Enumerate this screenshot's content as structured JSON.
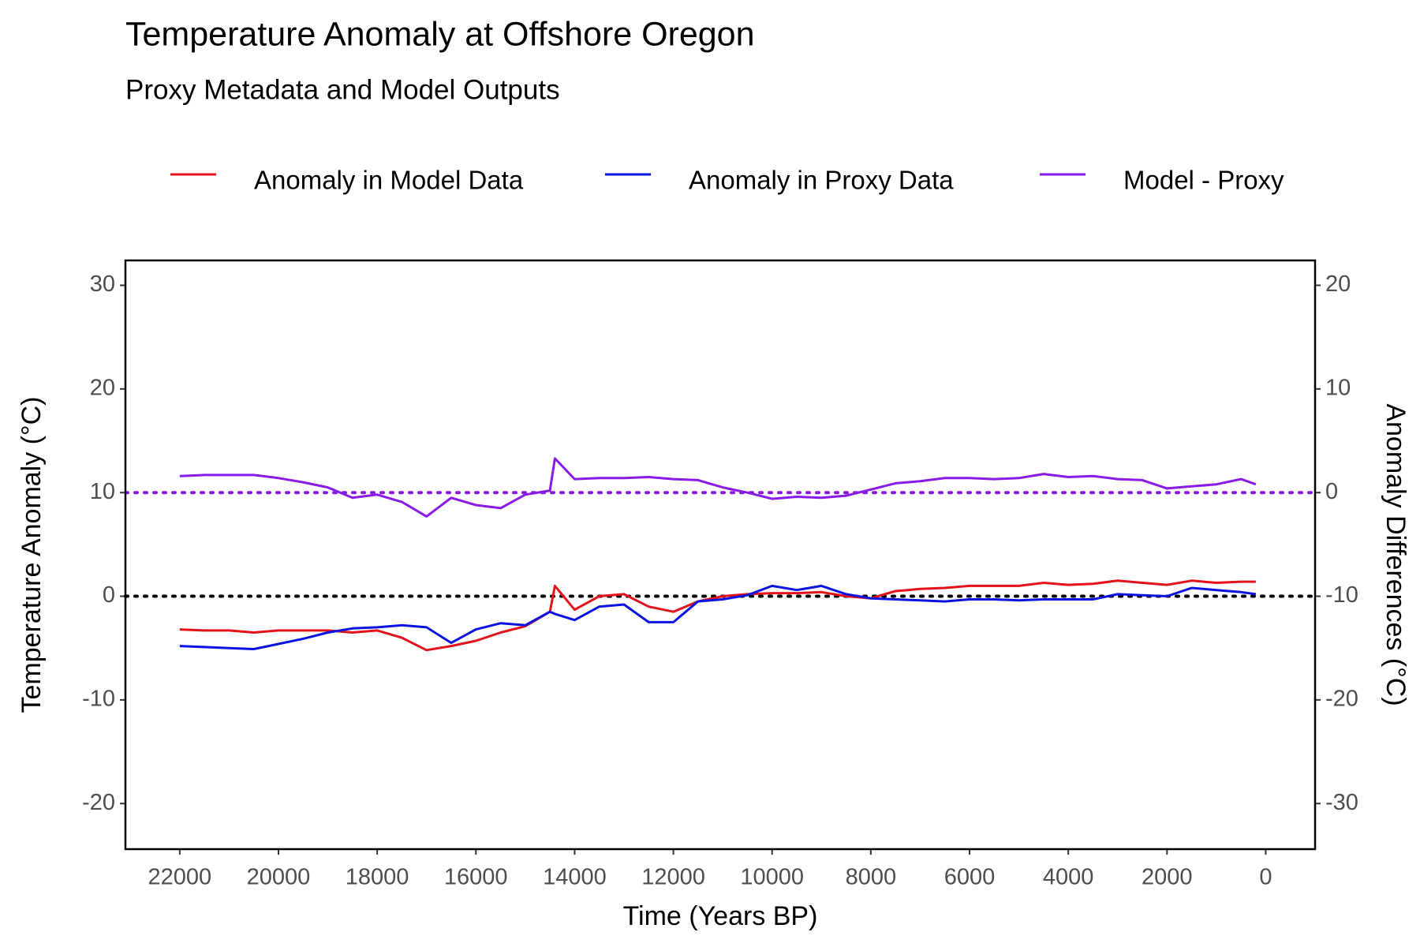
{
  "chart_data": {
    "type": "line",
    "title": "Temperature Anomaly at Offshore Oregon",
    "subtitle": "Proxy Metadata and Model Outputs",
    "xlabel": "Time (Years BP)",
    "ylabel": "Temperature Anomaly (°C)",
    "y2label": "Anomaly Differences (°C)",
    "x": [
      22000,
      21500,
      21000,
      20500,
      20000,
      19500,
      19000,
      18500,
      18000,
      17500,
      17000,
      16500,
      16000,
      15500,
      15000,
      14500,
      14400,
      14000,
      13500,
      13000,
      12500,
      12000,
      11500,
      11000,
      10500,
      10000,
      9500,
      9000,
      8500,
      8000,
      7500,
      7000,
      6500,
      6000,
      5500,
      5000,
      4500,
      4000,
      3500,
      3000,
      2500,
      2000,
      1500,
      1000,
      500,
      200
    ],
    "xlim": [
      23100,
      -1000
    ],
    "xticks": [
      22000,
      20000,
      18000,
      16000,
      14000,
      12000,
      10000,
      8000,
      6000,
      4000,
      2000,
      0
    ],
    "ylim": [
      -24.4,
      32.4
    ],
    "yticks": [
      -20,
      -10,
      0,
      10,
      20,
      30
    ],
    "y2lim": [
      -34.4,
      22.4
    ],
    "y2ticks": [
      -30,
      -20,
      -10,
      0,
      10,
      20
    ],
    "legend": "top",
    "hlines": [
      {
        "value": 0,
        "axis": "y",
        "color": "#000000"
      },
      {
        "value": 0,
        "axis": "y2",
        "color": "#8a1ae6"
      }
    ],
    "series": [
      {
        "name": "Anomaly in Model Data",
        "color": "#e3121b",
        "axis": "y",
        "values": [
          -3.2,
          -3.3,
          -3.3,
          -3.5,
          -3.3,
          -3.3,
          -3.3,
          -3.5,
          -3.3,
          -4.0,
          -5.2,
          -4.8,
          -4.3,
          -3.5,
          -2.9,
          -1.5,
          1.0,
          -1.3,
          0.0,
          0.2,
          -1.0,
          -1.5,
          -0.5,
          0.0,
          0.2,
          0.3,
          0.3,
          0.4,
          0.0,
          -0.2,
          0.5,
          0.7,
          0.8,
          1.0,
          1.0,
          1.0,
          1.3,
          1.1,
          1.2,
          1.5,
          1.3,
          1.1,
          1.5,
          1.3,
          1.4,
          1.4
        ]
      },
      {
        "name": "Anomaly in Proxy Data",
        "color": "#0a14e0",
        "axis": "y",
        "values": [
          -4.8,
          -4.9,
          -5.0,
          -5.1,
          -4.6,
          -4.1,
          -3.5,
          -3.1,
          -3.0,
          -2.8,
          -3.0,
          -4.5,
          -3.2,
          -2.6,
          -2.8,
          -1.5,
          -1.7,
          -2.3,
          -1.0,
          -0.8,
          -2.5,
          -2.5,
          -0.5,
          -0.3,
          0.1,
          1.0,
          0.6,
          1.0,
          0.2,
          -0.2,
          -0.3,
          -0.4,
          -0.5,
          -0.3,
          -0.3,
          -0.4,
          -0.3,
          -0.3,
          -0.3,
          0.2,
          0.1,
          0.0,
          0.8,
          0.6,
          0.4,
          0.2
        ]
      },
      {
        "name": "Model - Proxy",
        "color": "#8a1ae6",
        "axis": "y2",
        "values": [
          1.6,
          1.7,
          1.7,
          1.7,
          1.4,
          1.0,
          0.5,
          -0.5,
          -0.2,
          -0.9,
          -2.3,
          -0.5,
          -1.2,
          -1.5,
          -0.2,
          0.2,
          3.3,
          1.3,
          1.4,
          1.4,
          1.5,
          1.3,
          1.2,
          0.5,
          0.0,
          -0.6,
          -0.4,
          -0.5,
          -0.3,
          0.3,
          0.9,
          1.1,
          1.4,
          1.4,
          1.3,
          1.4,
          1.8,
          1.5,
          1.6,
          1.3,
          1.2,
          0.4,
          0.6,
          0.8,
          1.3,
          0.8
        ]
      }
    ]
  }
}
